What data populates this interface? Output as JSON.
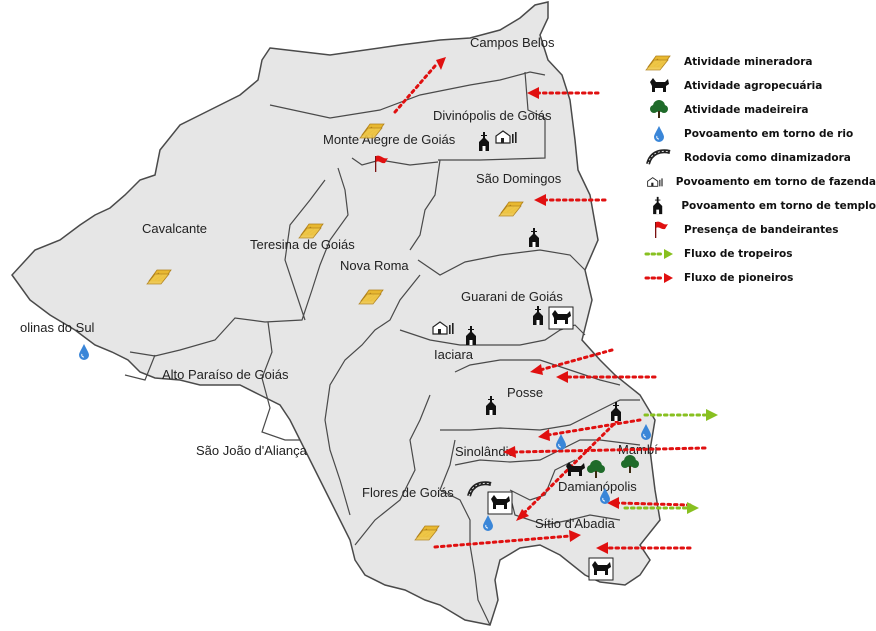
{
  "municipalities": [
    {
      "id": "campos-belos",
      "name": "Campos Belos"
    },
    {
      "id": "divinopolis",
      "name": "Divinópolis de Goiás"
    },
    {
      "id": "monte-alegre",
      "name": "Monte Alegre de Goiás"
    },
    {
      "id": "sao-domingos",
      "name": "São Domingos"
    },
    {
      "id": "cavalcante",
      "name": "Cavalcante"
    },
    {
      "id": "teresina",
      "name": "Teresina de Goiás"
    },
    {
      "id": "nova-roma",
      "name": "Nova Roma"
    },
    {
      "id": "guarani",
      "name": "Guarani de Goiás"
    },
    {
      "id": "colinas",
      "name": "olinas do Sul"
    },
    {
      "id": "iaciara",
      "name": "Iaciara"
    },
    {
      "id": "alto-paraiso",
      "name": "Alto Paraíso de Goiás"
    },
    {
      "id": "posse",
      "name": "Posse"
    },
    {
      "id": "sao-joao",
      "name": "São João d'Aliança"
    },
    {
      "id": "simolandia",
      "name": "Sinolândia"
    },
    {
      "id": "mambai",
      "name": "Mambí"
    },
    {
      "id": "damianopolis",
      "name": "Damianópolis"
    },
    {
      "id": "flores",
      "name": "Flores de Goiás"
    },
    {
      "id": "sitio",
      "name": "Sítio d'Abadia"
    }
  ],
  "legend": [
    {
      "icon": "mining-icon",
      "label": "Atividade mineradora"
    },
    {
      "icon": "cattle-icon",
      "label": "Atividade agropecuária"
    },
    {
      "icon": "tree-icon",
      "label": "Atividade madeireira"
    },
    {
      "icon": "water-drop-icon",
      "label": "Povoamento em torno de rio"
    },
    {
      "icon": "road-icon",
      "label": "Rodovia como dinamizadora"
    },
    {
      "icon": "farm-icon",
      "label": "Povoamento em torno de fazenda"
    },
    {
      "icon": "church-icon",
      "label": "Povoamento em torno de templo"
    },
    {
      "icon": "flag-icon",
      "label": "Presença de bandeirantes"
    },
    {
      "icon": "green-arrow-icon",
      "label": "Fluxo de tropeiros"
    },
    {
      "icon": "red-arrow-icon",
      "label": "Fluxo de pioneiros"
    }
  ],
  "colors": {
    "land": "#e6e6e6",
    "border": "#4a4a4a",
    "pioneer_flow": "#e01010",
    "drover_flow": "#88c020",
    "gold": "#e8b830",
    "water": "#3a86d8",
    "tree": "#1f6b2a"
  }
}
